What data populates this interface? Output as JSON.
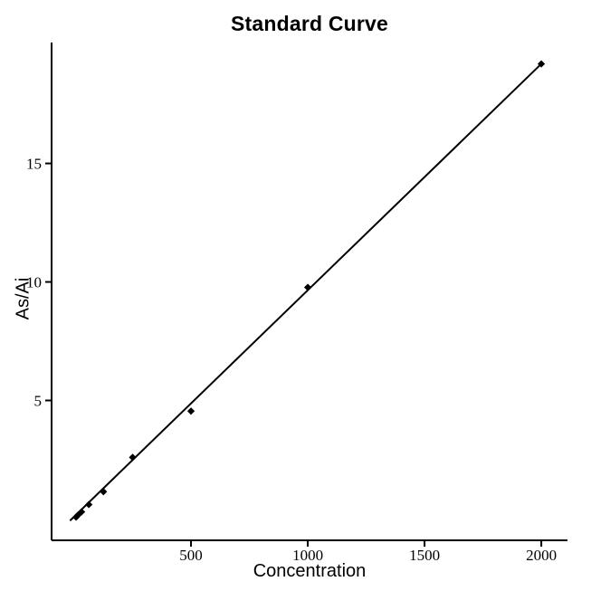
{
  "chart_data": {
    "type": "scatter",
    "title": "Standard Curve",
    "xlabel": "Concentration",
    "ylabel": "As/Ai",
    "xlim": [
      -97,
      2112
    ],
    "ylim": [
      -0.9,
      20.1
    ],
    "x_ticks": [
      500,
      1000,
      1500,
      2000
    ],
    "y_ticks": [
      5,
      10,
      15
    ],
    "grid": false,
    "legend": null,
    "background": "#ffffff",
    "axis_color": "#000000",
    "point_color": "#000000",
    "line_color": "#000000",
    "points": [
      {
        "x": 7.8,
        "y": 0.08
      },
      {
        "x": 15.6,
        "y": 0.16
      },
      {
        "x": 31.2,
        "y": 0.3
      },
      {
        "x": 62.5,
        "y": 0.61
      },
      {
        "x": 125,
        "y": 1.15
      },
      {
        "x": 250,
        "y": 2.6
      },
      {
        "x": 500,
        "y": 4.55
      },
      {
        "x": 1000,
        "y": 9.77
      },
      {
        "x": 2000,
        "y": 19.2
      }
    ],
    "fit_line": {
      "x1": -16,
      "y1": -0.05,
      "x2": 2000,
      "y2": 19.2
    }
  }
}
